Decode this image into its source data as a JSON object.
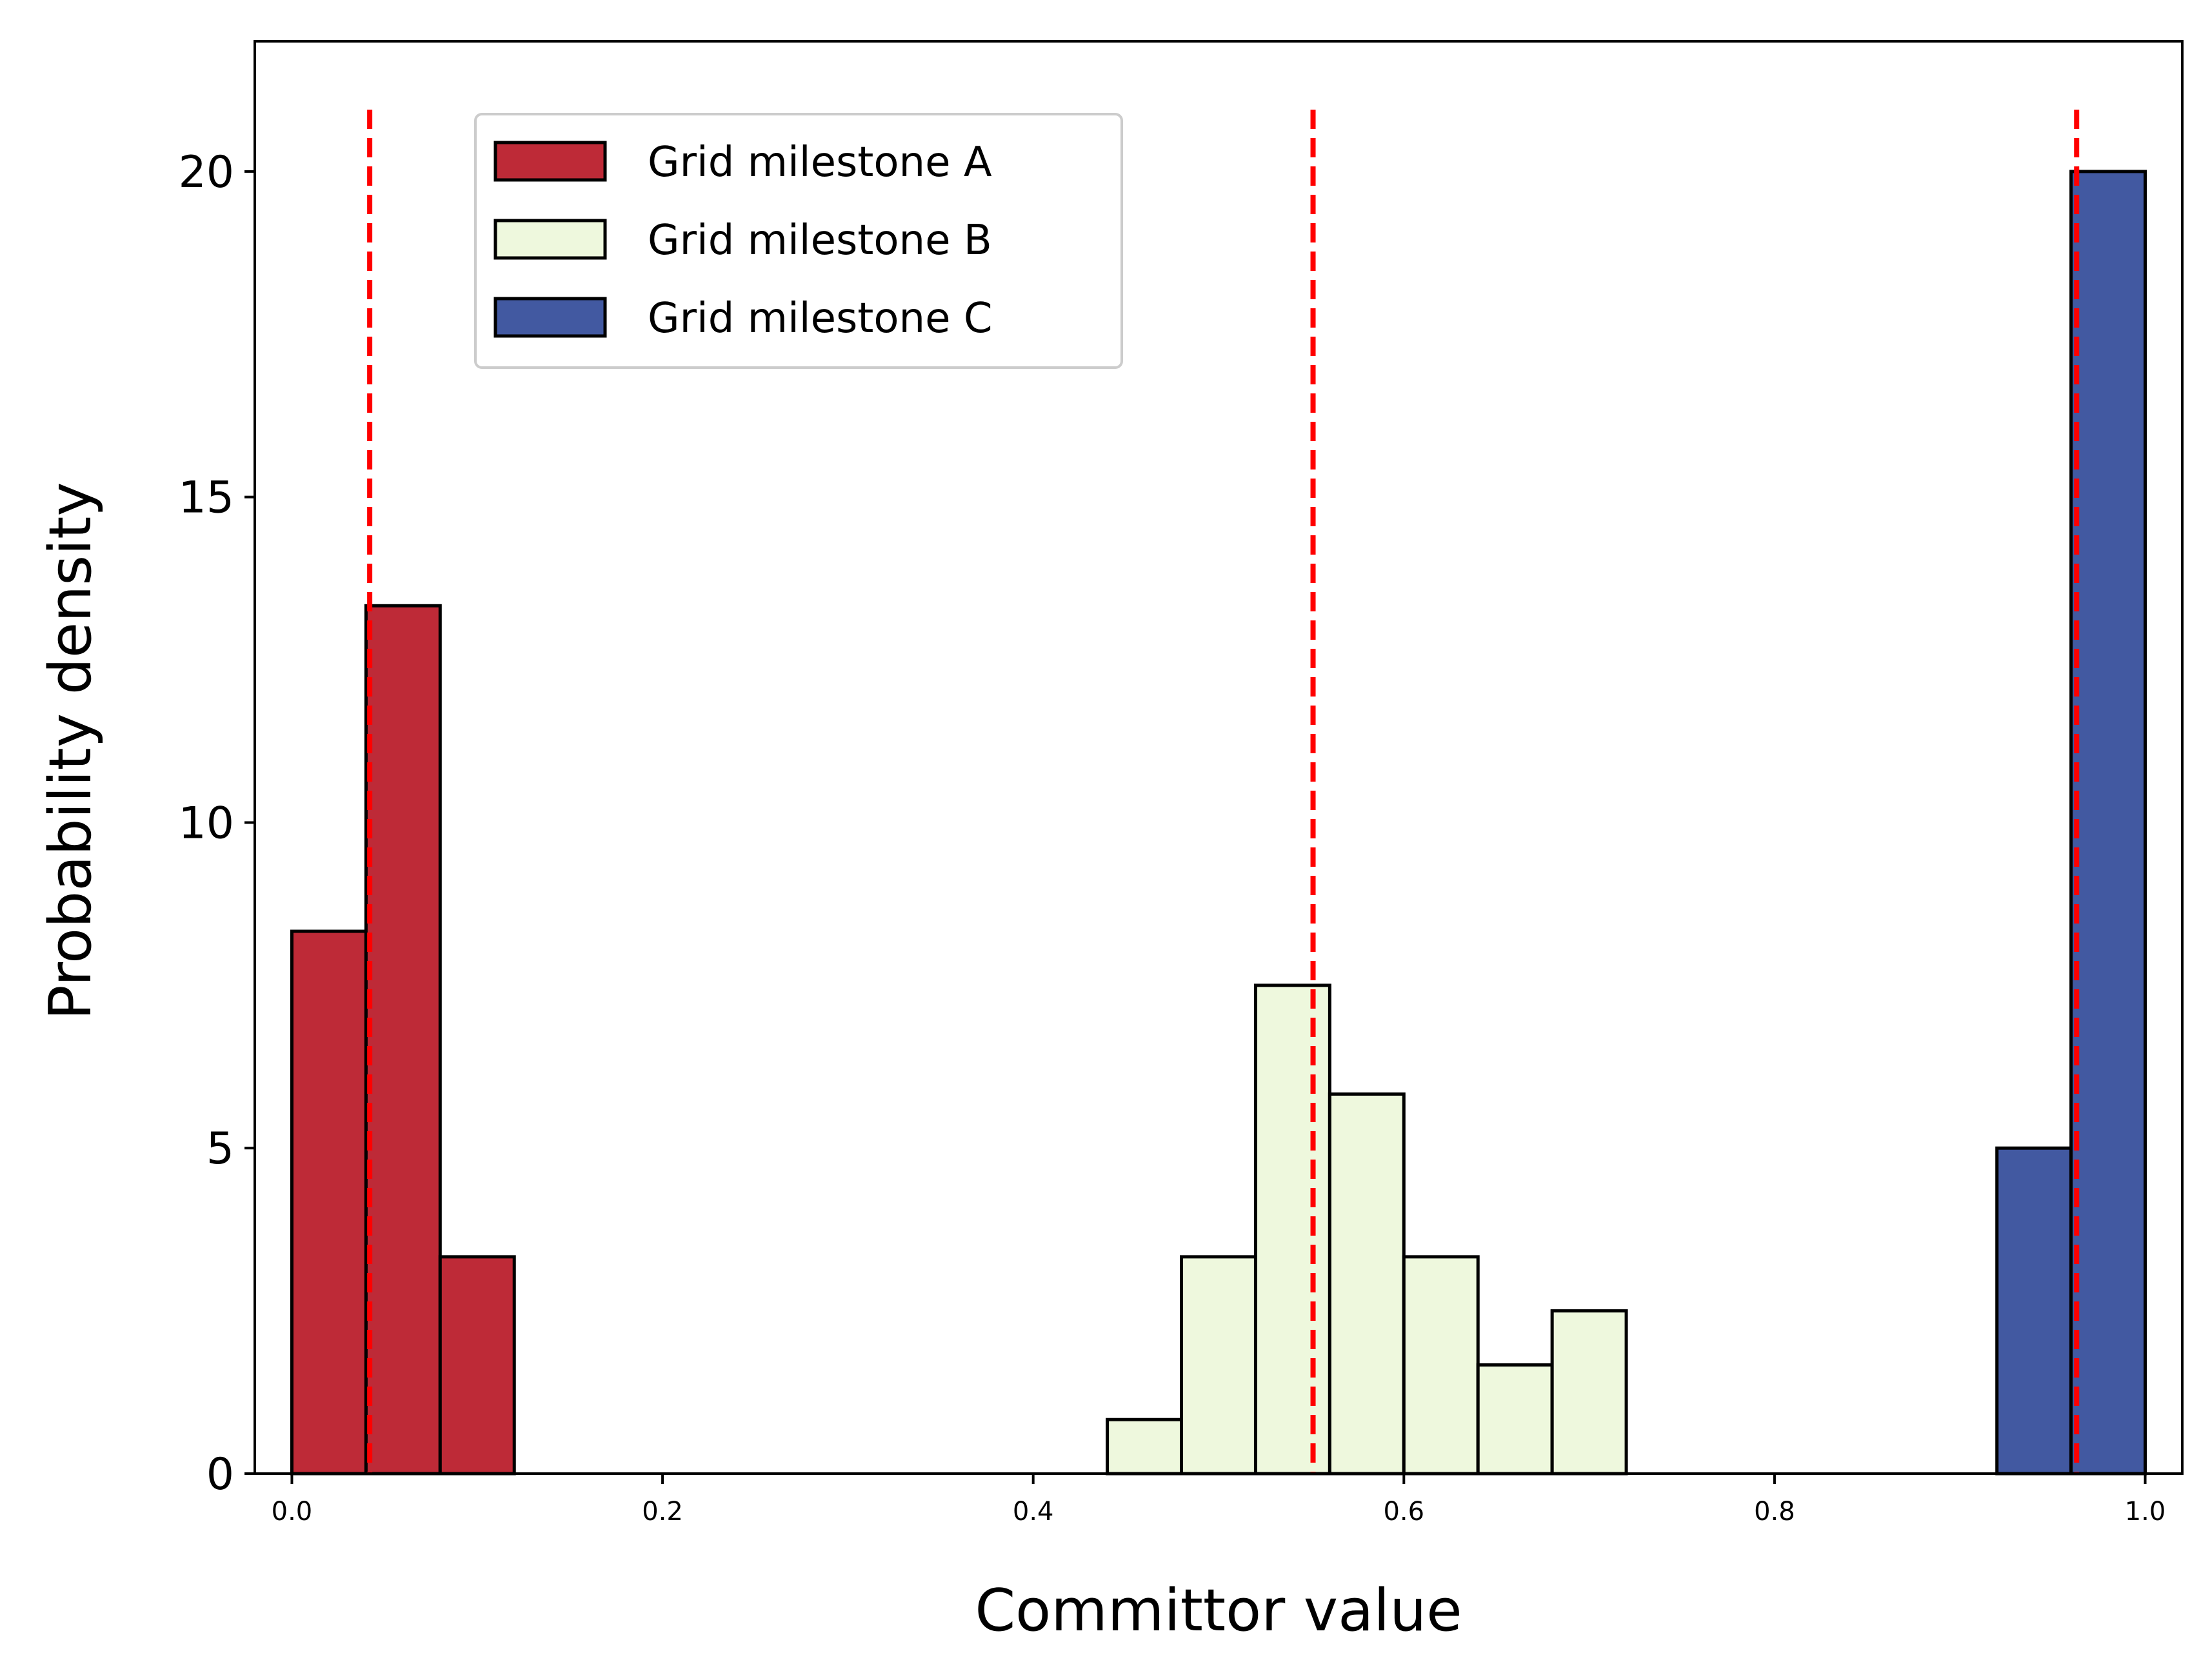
{
  "chart_data": {
    "type": "bar",
    "title": "",
    "xlabel": "Committor value",
    "ylabel": "Probability density",
    "xlim": [
      -0.02,
      1.02
    ],
    "ylim": [
      0,
      22
    ],
    "bin_width": 0.04,
    "x_ticks": [
      0.0,
      0.2,
      0.4,
      0.6,
      0.8,
      1.0
    ],
    "x_tick_labels": [
      "0.0",
      "0.2",
      "0.4",
      "0.6",
      "0.8",
      "1.0"
    ],
    "y_ticks": [
      0,
      5,
      10,
      15,
      20
    ],
    "y_tick_labels": [
      "0",
      "5",
      "10",
      "15",
      "20"
    ],
    "legend_position": "upper-left",
    "series": [
      {
        "name": "Grid milestone A",
        "color": "#be2a37",
        "bin_starts": [
          0.0,
          0.04,
          0.08
        ],
        "values": [
          8.33,
          13.33,
          3.33
        ],
        "mean_line": 0.042
      },
      {
        "name": "Grid milestone B",
        "color": "#eef8dd",
        "bin_starts": [
          0.44,
          0.48,
          0.52,
          0.56,
          0.6,
          0.64,
          0.68
        ],
        "values": [
          0.83,
          3.33,
          7.5,
          5.83,
          3.33,
          1.67,
          2.5
        ],
        "mean_line": 0.551
      },
      {
        "name": "Grid milestone C",
        "color": "#4259a1",
        "bin_starts": [
          0.92,
          0.96
        ],
        "values": [
          5.0,
          20.0
        ],
        "mean_line": 0.963
      }
    ],
    "reference_line_color": "#ff0000"
  }
}
